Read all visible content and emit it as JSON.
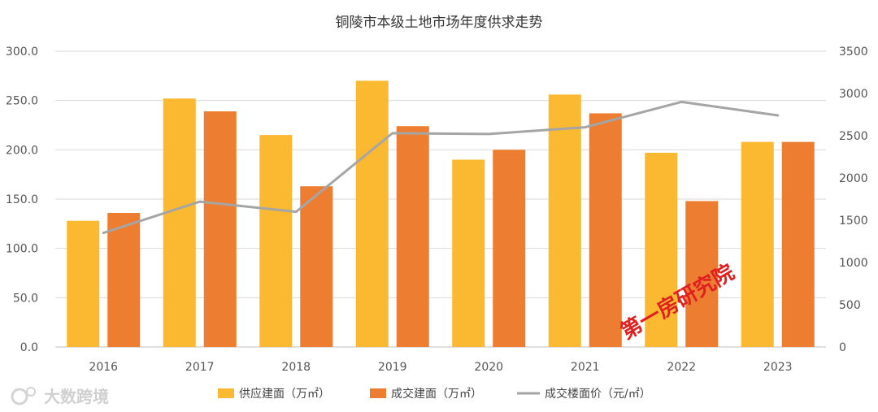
{
  "chart_data": {
    "type": "bar",
    "title": "铜陵市本级土地市场年度供求走势",
    "categories": [
      "2016",
      "2017",
      "2018",
      "2019",
      "2020",
      "2021",
      "2022",
      "2023"
    ],
    "series": [
      {
        "name": "供应建面（万㎡）",
        "type": "bar",
        "axis": "left",
        "color": "#FBB932",
        "values": [
          128,
          252,
          215,
          270,
          190,
          256,
          197,
          208
        ]
      },
      {
        "name": "成交建面（万㎡）",
        "type": "bar",
        "axis": "left",
        "color": "#ED7D31",
        "values": [
          136,
          239,
          163,
          224,
          200,
          237,
          148,
          208
        ]
      }
    ],
    "line_series": [
      {
        "name": "成交楼面价（元/㎡）",
        "type": "line",
        "axis": "right",
        "color": "#A5A5A5",
        "values": [
          1350,
          1720,
          1600,
          2530,
          2520,
          2600,
          2900,
          2740
        ]
      }
    ],
    "y_left": {
      "min": 0,
      "max": 300,
      "step": 50,
      "tick_labels": [
        "0.0",
        "50.0",
        "100.0",
        "150.0",
        "200.0",
        "250.0",
        "300.0"
      ]
    },
    "y_right": {
      "min": 0,
      "max": 3500,
      "step": 500,
      "tick_labels": [
        "0",
        "500",
        "1000",
        "1500",
        "2000",
        "2500",
        "3000",
        "3500"
      ]
    },
    "grid": true,
    "legend_position": "bottom"
  },
  "watermarks": {
    "stamp": "第一房研究院",
    "logo": "大数跨境"
  }
}
